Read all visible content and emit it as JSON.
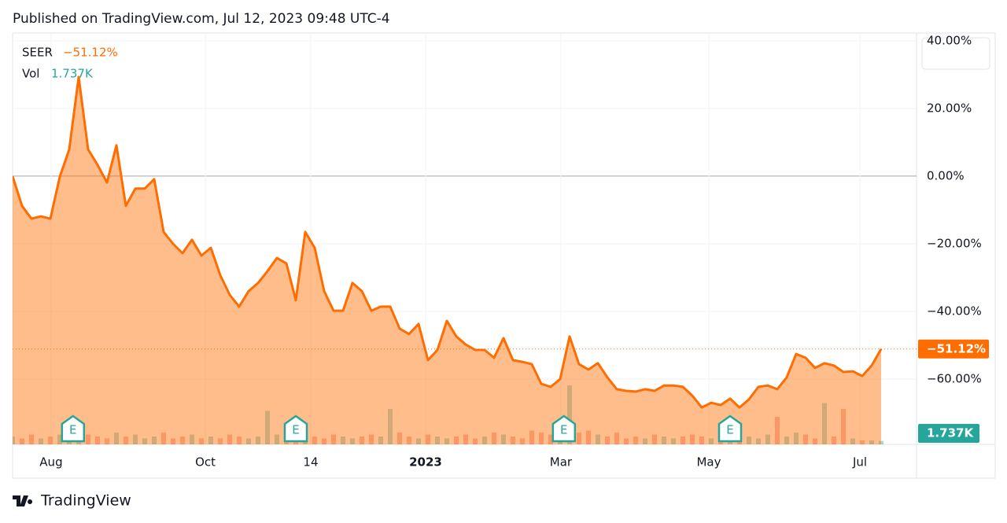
{
  "header": "Published on TradingView.com, Jul 12, 2023 09:48 UTC-4",
  "footer": "TradingView",
  "chart_data": {
    "type": "area",
    "series": [
      {
        "name": "SEER",
        "color": "#ff6d00",
        "last_label": "−51.12%",
        "values": [
          0,
          -8.8,
          -12.6,
          -11.9,
          -12.6,
          -0.2,
          7.9,
          29.3,
          7.9,
          3.3,
          -1.9,
          9.1,
          -8.8,
          -3.7,
          -3.7,
          -0.9,
          -16.5,
          -20.0,
          -22.8,
          -18.8,
          -23.5,
          -21.2,
          -29.3,
          -35.1,
          -38.6,
          -34.0,
          -31.6,
          -28.1,
          -24.2,
          -25.8,
          -36.7,
          -16.5,
          -21.2,
          -34.0,
          -39.8,
          -39.8,
          -31.6,
          -34.0,
          -39.8,
          -38.6,
          -38.6,
          -45.1,
          -46.7,
          -43.7,
          -54.4,
          -51.4,
          -42.8,
          -47.4,
          -49.8,
          -51.4,
          -51.4,
          -53.7,
          -47.9,
          -54.4,
          -54.9,
          -55.6,
          -61.4,
          -62.3,
          -60.0,
          -47.4,
          -55.6,
          -57.2,
          -55.3,
          -59.5,
          -63.0,
          -63.5,
          -63.7,
          -63.0,
          -63.5,
          -61.9,
          -61.9,
          -62.3,
          -64.9,
          -68.4,
          -67.0,
          -67.7,
          -65.8,
          -68.4,
          -66.0,
          -62.3,
          -61.9,
          -63.0,
          -59.5,
          -52.6,
          -53.7,
          -56.7,
          -55.3,
          -56.0,
          -57.9,
          -57.7,
          -59.1,
          -56.0,
          -51.12
        ]
      }
    ],
    "volume": {
      "name": "Vol",
      "last_label": "1.737K",
      "vlim": [
        0,
        40
      ],
      "values": [
        4,
        3,
        5,
        3,
        4,
        5,
        9,
        6,
        5,
        4,
        3,
        6,
        4,
        5,
        3,
        4,
        6,
        3,
        4,
        5,
        3,
        4,
        3,
        5,
        4,
        3,
        4,
        17,
        5,
        4,
        6,
        5,
        4,
        3,
        5,
        4,
        3,
        4,
        5,
        4,
        18,
        6,
        4,
        3,
        5,
        4,
        3,
        4,
        5,
        3,
        4,
        6,
        5,
        4,
        3,
        7,
        6,
        5,
        9,
        30,
        6,
        7,
        5,
        4,
        6,
        3,
        4,
        3,
        5,
        4,
        3,
        4,
        5,
        4,
        3,
        6,
        7,
        5,
        4,
        3,
        5,
        14,
        4,
        6,
        5,
        3,
        21,
        4,
        18,
        3,
        2,
        2,
        1.737
      ]
    },
    "events": [
      {
        "label": "E",
        "x": 6.4
      },
      {
        "label": "E",
        "x": 30
      },
      {
        "label": "E",
        "x": 58.4
      },
      {
        "label": "E",
        "x": 76
      }
    ],
    "xlim": [
      0,
      95.75
    ],
    "xticks": [
      {
        "value": 4.08,
        "label": "Aug"
      },
      {
        "value": 20.42,
        "label": "Oct"
      },
      {
        "value": 31.58,
        "label": "14"
      },
      {
        "value": 43.75,
        "label": "2023",
        "bold": true
      },
      {
        "value": 58.08,
        "label": "Mar"
      },
      {
        "value": 73.75,
        "label": "May"
      },
      {
        "value": 89.75,
        "label": "Jul"
      }
    ],
    "ylim": [
      -79.3,
      42.3
    ],
    "yticks": [
      {
        "value": 40,
        "label": "40.00%"
      },
      {
        "value": 20,
        "label": "20.00%"
      },
      {
        "value": 0,
        "label": "0.00%"
      },
      {
        "value": -20,
        "label": "−20.00%"
      },
      {
        "value": -40,
        "label": "−40.00%"
      },
      {
        "value": -60,
        "label": "−60.00%"
      }
    ],
    "grid": true
  }
}
